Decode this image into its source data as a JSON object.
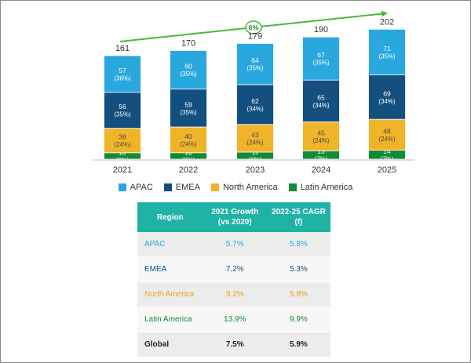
{
  "colors": {
    "APAC": "#29a8e0",
    "EMEA": "#134f7f",
    "North America": "#f0b429",
    "Latin America": "#138a36",
    "trend": "#4cb63f",
    "table_header": "#1fb3a6"
  },
  "chart_data": {
    "type": "bar",
    "stacked": true,
    "categories": [
      "2021",
      "2022",
      "2023",
      "2024",
      "2025"
    ],
    "totals": [
      161,
      170,
      179,
      190,
      202
    ],
    "series": [
      {
        "name": "Latin America",
        "values": [
          10,
          10,
          11,
          13,
          14
        ],
        "shares": [
          "(6%)",
          "(6%)",
          "(6%)",
          "(7%)",
          "(7%)"
        ]
      },
      {
        "name": "North America",
        "values": [
          38,
          40,
          43,
          45,
          48
        ],
        "shares": [
          "(24%)",
          "(24%)",
          "(24%)",
          "(24%)",
          "(24%)"
        ]
      },
      {
        "name": "EMEA",
        "values": [
          56,
          59,
          62,
          65,
          69
        ],
        "shares": [
          "(35%)",
          "(35%)",
          "(34%)",
          "(34%)",
          "(34%)"
        ]
      },
      {
        "name": "APAC",
        "values": [
          57,
          60,
          64,
          67,
          71
        ],
        "shares": [
          "(36%)",
          "(35%)",
          "(35%)",
          "(35%)",
          "(35%)"
        ]
      }
    ],
    "trend_label": "6%",
    "legend": [
      "APAC",
      "EMEA",
      "North America",
      "Latin America"
    ],
    "legend_position": "bottom",
    "grid": false
  },
  "table": {
    "headers": [
      "Region",
      "2021 Growth (vs 2020)",
      "2022-25 CAGR (f)"
    ],
    "rows": [
      {
        "region": "APAC",
        "growth": "5.7%",
        "cagr": "5.8%",
        "color": "#29a8e0"
      },
      {
        "region": "EMEA",
        "growth": "7.2%",
        "cagr": "5.3%",
        "color": "#134f7f"
      },
      {
        "region": "North America",
        "growth": "9.2%",
        "cagr": "5.8%",
        "color": "#e8a317"
      },
      {
        "region": "Latin America",
        "growth": "13.9%",
        "cagr": "9.9%",
        "color": "#138a36"
      },
      {
        "region": "Global",
        "growth": "7.5%",
        "cagr": "5.9%",
        "color": "#222222"
      }
    ]
  }
}
